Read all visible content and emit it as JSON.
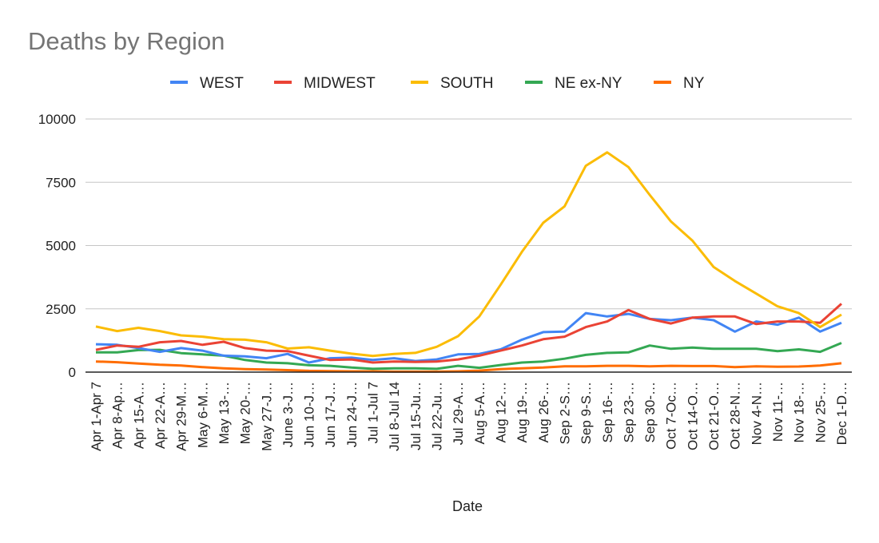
{
  "chart_data": {
    "type": "line",
    "title": "Deaths by Region",
    "xlabel": "Date",
    "ylabel": "",
    "ylim": [
      0,
      10000
    ],
    "yticks": [
      0,
      2500,
      5000,
      7500,
      10000
    ],
    "grid": true,
    "legend_position": "top",
    "categories": [
      "Apr 1-Apr 7",
      "Apr 8-Ap…",
      "Apr 15-A…",
      "Apr 22-A…",
      "Apr 29-M…",
      "May 6-M…",
      "May 13-…",
      "May 20-…",
      "May 27-J…",
      "June 3-J…",
      "Jun 10-J…",
      "Jun 17-J…",
      "Jun 24-J…",
      "Jul 1-Jul 7",
      "Jul 8-Jul 14",
      "Jul 15-Ju…",
      "Jul 22-Ju…",
      "Jul 29-A…",
      "Aug 5-A…",
      "Aug 12-…",
      "Aug 19-…",
      "Aug 26-…",
      "Sep 2-S…",
      "Sep 9-S…",
      "Sep 16-…",
      "Sep 23-…",
      "Sep 30-…",
      "Oct 7-Oc…",
      "Oct 14-O…",
      "Oct 21-O…",
      "Oct 28-N…",
      "Nov 4-N…",
      "Nov 11-…",
      "Nov 18-…",
      "Nov 25-…",
      "Dec 1-D…"
    ],
    "series": [
      {
        "name": "WEST",
        "color": "#4285f4",
        "values": [
          1100,
          1080,
          950,
          800,
          950,
          850,
          650,
          620,
          550,
          720,
          380,
          550,
          570,
          480,
          550,
          440,
          500,
          700,
          720,
          900,
          1280,
          1580,
          1600,
          2330,
          2200,
          2300,
          2100,
          2050,
          2150,
          2050,
          1600,
          2000,
          1870,
          2150,
          1600,
          1950
        ]
      },
      {
        "name": "MIDWEST",
        "color": "#ea4335",
        "values": [
          880,
          1050,
          1000,
          1180,
          1230,
          1080,
          1200,
          950,
          850,
          830,
          650,
          480,
          500,
          380,
          420,
          400,
          420,
          500,
          650,
          850,
          1050,
          1300,
          1400,
          1780,
          2000,
          2450,
          2100,
          1920,
          2150,
          2200,
          2200,
          1900,
          2000,
          2000,
          1950,
          2700
        ]
      },
      {
        "name": "SOUTH",
        "color": "#fbbc04",
        "values": [
          1800,
          1620,
          1750,
          1620,
          1450,
          1400,
          1300,
          1280,
          1180,
          930,
          980,
          850,
          730,
          640,
          720,
          760,
          1000,
          1420,
          2200,
          3450,
          4750,
          5900,
          6550,
          8150,
          8680,
          8100,
          7000,
          5950,
          5200,
          4150,
          3600,
          3100,
          2600,
          2330,
          1780,
          2270
        ]
      },
      {
        "name": "NE ex-NY",
        "color": "#34a853",
        "values": [
          780,
          780,
          870,
          880,
          750,
          700,
          650,
          480,
          380,
          350,
          270,
          250,
          180,
          130,
          150,
          150,
          130,
          250,
          170,
          280,
          380,
          420,
          530,
          680,
          760,
          780,
          1050,
          920,
          970,
          920,
          920,
          920,
          830,
          900,
          800,
          1150
        ]
      },
      {
        "name": "NY",
        "color": "#ff6d01",
        "values": [
          420,
          390,
          340,
          290,
          260,
          200,
          150,
          120,
          100,
          80,
          50,
          40,
          30,
          30,
          20,
          20,
          20,
          30,
          60,
          120,
          150,
          180,
          230,
          230,
          250,
          250,
          230,
          250,
          240,
          240,
          200,
          230,
          210,
          220,
          260,
          350
        ]
      }
    ]
  }
}
